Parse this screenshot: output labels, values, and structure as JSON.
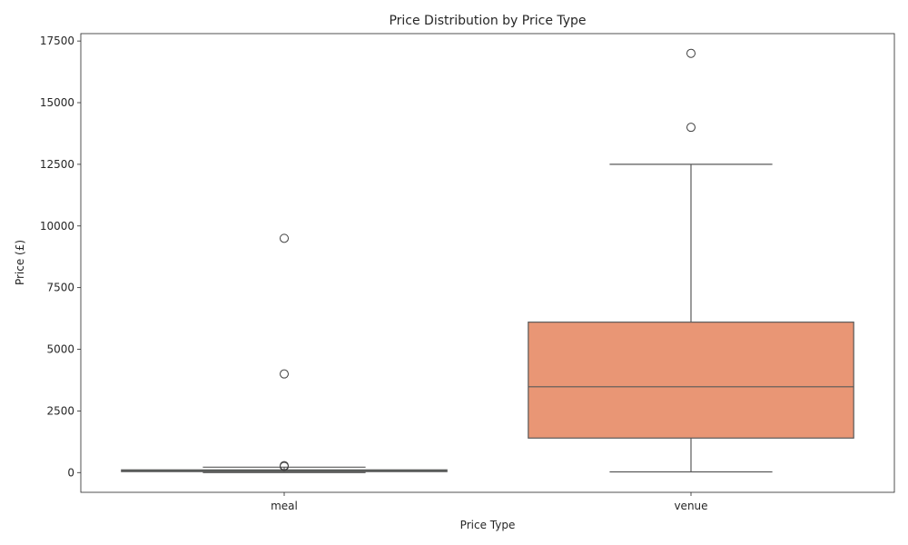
{
  "chart_data": {
    "type": "box",
    "title": "Price Distribution by Price Type",
    "xlabel": "Price Type",
    "ylabel": "Price (£)",
    "ylim": [
      -800,
      17800
    ],
    "yticks": [
      0,
      2500,
      5000,
      7500,
      10000,
      12500,
      15000,
      17500
    ],
    "categories": [
      "meal",
      "venue"
    ],
    "series": [
      {
        "category": "meal",
        "min": 0,
        "q1": 40,
        "median": 75,
        "q3": 110,
        "max": 220,
        "outliers": [
          9500,
          4000,
          280,
          250
        ],
        "color": "#66c2a5"
      },
      {
        "category": "venue",
        "min": 30,
        "q1": 1400,
        "median": 3480,
        "q3": 6100,
        "max": 12500,
        "outliers": [
          17000,
          14000
        ],
        "color": "#e99675"
      }
    ],
    "grid": false,
    "legend": "none"
  }
}
